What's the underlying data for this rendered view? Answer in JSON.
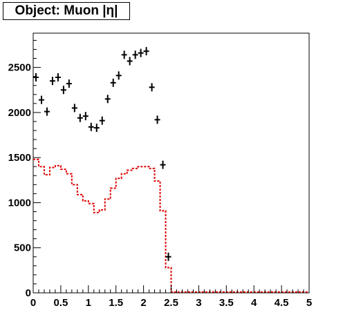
{
  "title": "Object: Muon |η|",
  "chart_data": {
    "type": "line",
    "title": "Object: Muon |η|",
    "xlim": [
      0,
      5
    ],
    "ylim": [
      0,
      2880
    ],
    "x_ticks": [
      "0",
      "0.5",
      "1",
      "1.5",
      "2",
      "2.5",
      "3",
      "3.5",
      "4",
      "4.5",
      "5"
    ],
    "y_ticks": [
      "0",
      "500",
      "1000",
      "1500",
      "2000",
      "2500"
    ],
    "grid": false,
    "colors": {
      "points": "#000000",
      "histogram": "#dd0000"
    },
    "points": {
      "style": "crosses",
      "x": [
        0.05,
        0.15,
        0.25,
        0.35,
        0.45,
        0.55,
        0.65,
        0.75,
        0.85,
        0.95,
        1.05,
        1.15,
        1.25,
        1.35,
        1.45,
        1.55,
        1.65,
        1.75,
        1.85,
        1.95,
        2.05,
        2.15,
        2.25,
        2.35,
        2.45
      ],
      "y": [
        2390,
        2140,
        2010,
        2350,
        2390,
        2250,
        2320,
        2050,
        1940,
        1960,
        1840,
        1830,
        1910,
        2150,
        2330,
        2410,
        2640,
        2570,
        2640,
        2660,
        2680,
        2280,
        1920,
        1420,
        400
      ]
    },
    "histogram": {
      "style": "dashed-step",
      "bin_edges": [
        0,
        0.1,
        0.2,
        0.3,
        0.4,
        0.5,
        0.6,
        0.7,
        0.8,
        0.9,
        1.0,
        1.1,
        1.2,
        1.3,
        1.4,
        1.5,
        1.6,
        1.7,
        1.8,
        1.9,
        2.0,
        2.1,
        2.2,
        2.3,
        2.4,
        2.5,
        2.6,
        2.7,
        2.8,
        2.9,
        3.0,
        3.1,
        3.2,
        3.3,
        3.4,
        3.5,
        3.6,
        3.7,
        3.8,
        3.9,
        4.0,
        4.1,
        4.2,
        4.3,
        4.4,
        4.5,
        4.6,
        4.7,
        4.8,
        4.9,
        5.0
      ],
      "values": [
        1480,
        1400,
        1310,
        1390,
        1410,
        1370,
        1320,
        1200,
        1090,
        1020,
        990,
        890,
        920,
        1040,
        1160,
        1270,
        1320,
        1360,
        1380,
        1400,
        1400,
        1380,
        1240,
        910,
        280,
        10,
        10,
        10,
        10,
        10,
        10,
        10,
        10,
        10,
        10,
        10,
        10,
        10,
        10,
        10,
        10,
        10,
        10,
        10,
        10,
        10,
        10,
        10,
        10,
        10
      ]
    }
  }
}
